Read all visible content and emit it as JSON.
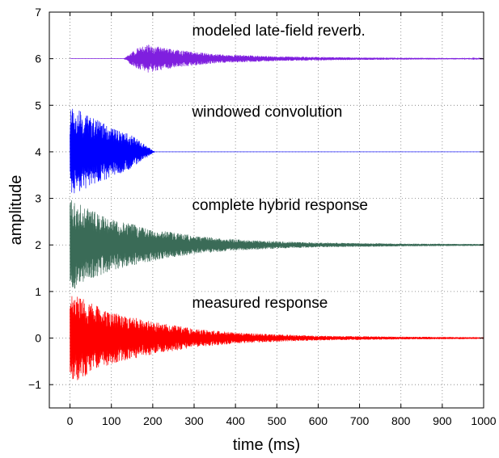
{
  "chart_data": {
    "type": "line",
    "title": "",
    "xlabel": "time (ms)",
    "ylabel": "amplitude",
    "xlim": [
      -50,
      1000
    ],
    "ylim": [
      -1.5,
      7
    ],
    "xticks": [
      0,
      100,
      200,
      300,
      400,
      500,
      600,
      700,
      800,
      900,
      1000
    ],
    "yticks": [
      -1,
      0,
      1,
      2,
      3,
      4,
      5,
      6,
      7
    ],
    "xtick_labels": [
      "0",
      "100",
      "200",
      "300",
      "400",
      "500",
      "600",
      "700",
      "800",
      "900",
      "1000"
    ],
    "ytick_labels": [
      "−1",
      "0",
      "1",
      "2",
      "3",
      "4",
      "5",
      "6",
      "7"
    ],
    "grid": true,
    "grid_style": "dotted",
    "series": [
      {
        "label_text": "measured response",
        "label_position": [
          295,
          0.65
        ],
        "color": "#ff0000",
        "offset": 0,
        "start_ms": 0,
        "end_ms": 1000,
        "peak_amplitude": 1.0,
        "envelope": "exponential decay from 1.0 at 0 ms to about 0.02 by 1000 ms",
        "envelope_points": [
          [
            0,
            1.0
          ],
          [
            50,
            0.75
          ],
          [
            100,
            0.55
          ],
          [
            200,
            0.35
          ],
          [
            300,
            0.2
          ],
          [
            400,
            0.12
          ],
          [
            500,
            0.08
          ],
          [
            600,
            0.05
          ],
          [
            800,
            0.03
          ],
          [
            1000,
            0.02
          ]
        ]
      },
      {
        "label_text": "complete hybrid response",
        "label_position": [
          295,
          2.75
        ],
        "color": "#3a6b57",
        "offset": 2,
        "start_ms": 0,
        "end_ms": 1000,
        "peak_amplitude": 1.0,
        "envelope": "exponential decay from 1.0 at 0 ms to about 0.02 by 1000 ms",
        "envelope_points": [
          [
            0,
            1.0
          ],
          [
            50,
            0.75
          ],
          [
            100,
            0.55
          ],
          [
            200,
            0.35
          ],
          [
            300,
            0.2
          ],
          [
            400,
            0.12
          ],
          [
            500,
            0.08
          ],
          [
            600,
            0.05
          ],
          [
            800,
            0.03
          ],
          [
            1000,
            0.02
          ]
        ]
      },
      {
        "label_text": "windowed convolution",
        "label_position": [
          295,
          4.75
        ],
        "color": "#0000ff",
        "offset": 4,
        "start_ms": 0,
        "end_ms": 1000,
        "peak_amplitude": 1.0,
        "envelope": "decays and is windowed to zero by about 200 ms",
        "envelope_points": [
          [
            0,
            1.0
          ],
          [
            50,
            0.75
          ],
          [
            100,
            0.55
          ],
          [
            150,
            0.35
          ],
          [
            190,
            0.1
          ],
          [
            205,
            0.0
          ],
          [
            1000,
            0.0
          ]
        ]
      },
      {
        "label_text": "modeled late-field reverb.",
        "label_position": [
          295,
          6.5
        ],
        "color": "#7f1fdf",
        "offset": 6,
        "start_ms": 0,
        "end_ms": 1000,
        "peak_amplitude": 0.32,
        "envelope": "zero until about 130 ms, rises to about 0.3 near 190 ms, then decays",
        "envelope_points": [
          [
            0,
            0.0
          ],
          [
            130,
            0.0
          ],
          [
            160,
            0.22
          ],
          [
            190,
            0.3
          ],
          [
            250,
            0.2
          ],
          [
            350,
            0.1
          ],
          [
            500,
            0.05
          ],
          [
            700,
            0.025
          ],
          [
            1000,
            0.01
          ]
        ]
      }
    ]
  }
}
